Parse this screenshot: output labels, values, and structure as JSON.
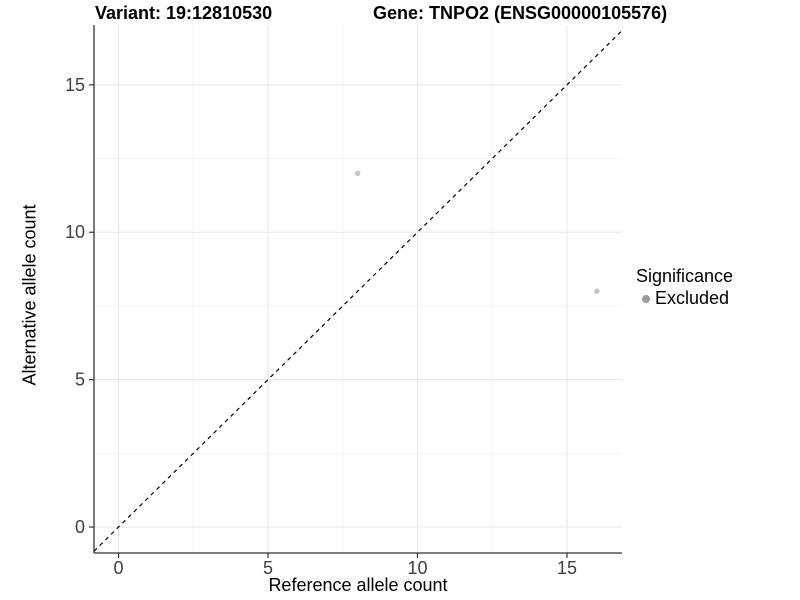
{
  "chart_data": {
    "type": "scatter",
    "title_variant": "Variant: 19:12810530",
    "title_gene": "Gene: TNPO2 (ENSG00000105576)",
    "xlabel": "Reference allele count",
    "ylabel": "Alternative allele count",
    "xlim": [
      -0.82,
      16.84
    ],
    "ylim": [
      -0.88,
      17.03
    ],
    "x_ticks": [
      0,
      5,
      10,
      15
    ],
    "y_ticks": [
      0,
      5,
      10,
      15
    ],
    "x_minor_ticks": [
      2.5,
      7.5,
      12.5
    ],
    "y_minor_ticks": [
      2.5,
      7.5,
      12.5
    ],
    "grid": true,
    "legend_position": "right",
    "identity_line": {
      "slope": 1,
      "intercept": 0,
      "style": "dashed"
    },
    "points": [
      {
        "x": 8,
        "y": 12,
        "series": "Excluded"
      },
      {
        "x": 16,
        "y": 8,
        "series": "Excluded"
      }
    ],
    "legend": {
      "title": "Significance",
      "items": [
        {
          "label": "Excluded",
          "color": "#9c9c9c"
        }
      ]
    },
    "colors": {
      "point": "#c4c4c4",
      "grid_major": "#e7e7e7",
      "grid_minor": "#f3f3f3",
      "axis": "#333333",
      "identity_line": "#000000",
      "tick_label": "#404040"
    }
  }
}
